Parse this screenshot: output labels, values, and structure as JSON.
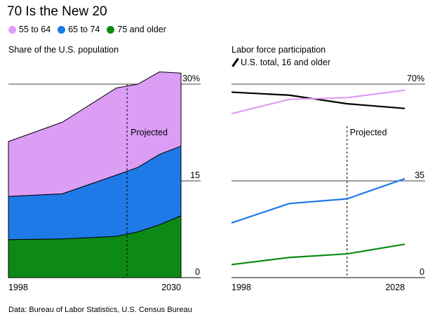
{
  "title": "70 Is the New 20",
  "legend": [
    {
      "label": "55 to 64",
      "color": "#dc9df5"
    },
    {
      "label": "65 to 74",
      "color": "#1f7ae8"
    },
    {
      "label": "75 and older",
      "color": "#0d8a16"
    }
  ],
  "left_panel_title": "Share of the U.S. population",
  "right_panel_title": "Labor force participation",
  "us_total_label": "U.S. total, 16 and older",
  "source": "Data: Bureau of Labor Statistics, U.S. Census Bureau",
  "chart_data": [
    {
      "type": "area",
      "stacked": true,
      "title": "Share of the U.S. population",
      "x": [
        1998,
        2008,
        2018,
        2022,
        2026,
        2030
      ],
      "x_tick_labels": [
        "1998",
        "2030"
      ],
      "y_ticks": [
        0,
        15,
        30
      ],
      "y_tick_labels": [
        "0",
        "15",
        "30%"
      ],
      "ylim": [
        0,
        31.5
      ],
      "projected_from": 2020,
      "projected_label": "Projected",
      "series": [
        {
          "name": "75 and older",
          "color": "#0d8a16",
          "values": [
            5.9,
            6.0,
            6.4,
            7.1,
            8.2,
            9.6
          ]
        },
        {
          "name": "65 to 74",
          "color": "#1f7ae8",
          "values": [
            6.7,
            7.0,
            9.5,
            10.0,
            10.9,
            10.8
          ]
        },
        {
          "name": "55 to 64",
          "color": "#dc9df5",
          "values": [
            8.5,
            11.1,
            13.5,
            12.9,
            12.8,
            11.3
          ]
        }
      ]
    },
    {
      "type": "line",
      "title": "Labor force participation",
      "x": [
        1998,
        2008,
        2018,
        2028
      ],
      "x_tick_labels": [
        "1998",
        "2028"
      ],
      "y_ticks": [
        0,
        35,
        70
      ],
      "y_tick_labels": [
        "0",
        "35",
        "70%"
      ],
      "ylim": [
        0,
        70
      ],
      "projected_from": 2018,
      "projected_label": "Projected",
      "series": [
        {
          "name": "U.S. total, 16 and older",
          "color": "#000000",
          "values": [
            67.1,
            66.0,
            62.9,
            61.2
          ]
        },
        {
          "name": "55 to 64",
          "color": "#dc9df5",
          "values": [
            59.3,
            64.5,
            65.1,
            67.8
          ]
        },
        {
          "name": "65 to 74",
          "color": "#1f7ae8",
          "values": [
            19.8,
            26.8,
            28.5,
            35.8
          ]
        },
        {
          "name": "75 and older",
          "color": "#0d8a16",
          "values": [
            4.7,
            7.3,
            8.6,
            12.1
          ]
        }
      ]
    }
  ]
}
